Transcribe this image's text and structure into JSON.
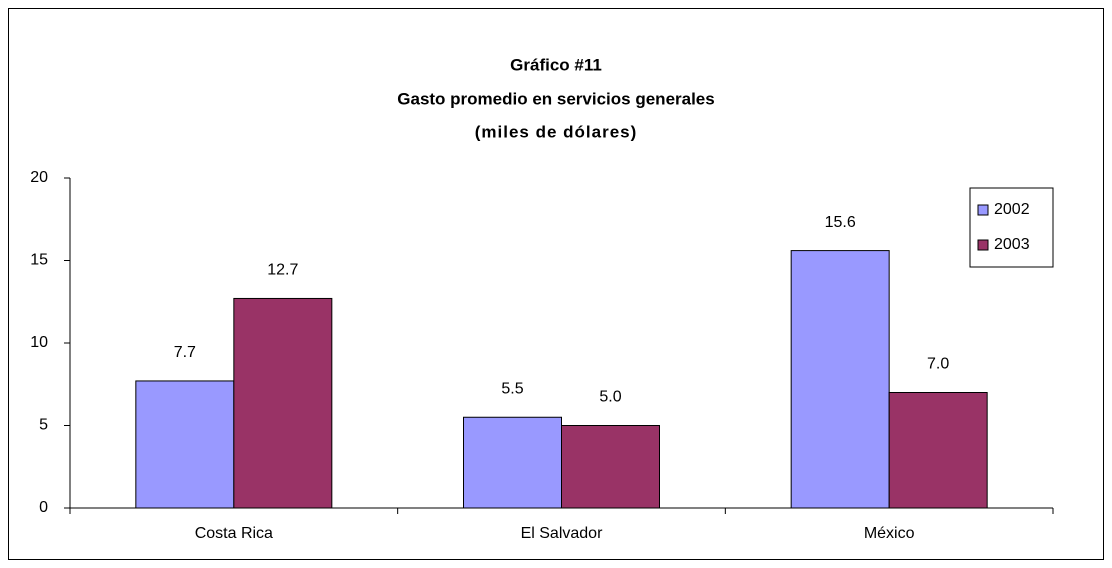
{
  "chart_data": {
    "type": "bar",
    "title": "Gráfico #11",
    "subtitle": "Gasto promedio en servicios generales",
    "unit_label": "(miles de dólares)",
    "categories": [
      "Costa Rica",
      "El Salvador",
      "México"
    ],
    "series": [
      {
        "name": "2002",
        "color": "#9999ff",
        "values": [
          7.7,
          5.5,
          15.6
        ],
        "value_labels": [
          "7.7",
          "5.5",
          "15.6"
        ]
      },
      {
        "name": "2003",
        "color": "#993366",
        "values": [
          12.7,
          5.0,
          7.0
        ],
        "value_labels": [
          "12.7",
          "5.0",
          "7.0"
        ]
      }
    ],
    "ylim": [
      0,
      20
    ],
    "yticks": [
      0,
      5,
      10,
      15,
      20
    ],
    "grid": false,
    "legend": "upper right"
  }
}
